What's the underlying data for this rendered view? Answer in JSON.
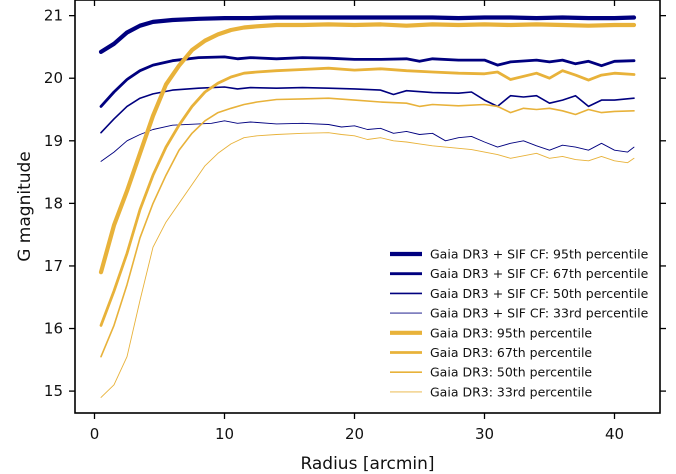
{
  "chart_data": {
    "type": "line",
    "xlabel": "Radius [arcmin]",
    "ylabel": "G magnitude",
    "xlim": [
      -1.5,
      43.5
    ],
    "ylim": [
      14.65,
      21.25
    ],
    "x_ticks": [
      0,
      10,
      20,
      30,
      40
    ],
    "y_ticks": [
      15,
      16,
      17,
      18,
      19,
      20,
      21
    ],
    "legend_position": "lower right",
    "grid": false,
    "series": [
      {
        "name": "Gaia DR3 + SIF CF: 95th percentile",
        "color": "#00007f",
        "width": 4.2,
        "x": [
          0.5,
          1.5,
          2.5,
          3.5,
          4.5,
          6,
          8,
          10,
          12,
          14,
          16,
          18,
          20,
          22,
          24,
          26,
          28,
          30,
          32,
          34,
          36,
          38,
          40,
          41.5
        ],
        "y": [
          20.42,
          20.55,
          20.73,
          20.84,
          20.9,
          20.93,
          20.95,
          20.96,
          20.96,
          20.97,
          20.97,
          20.97,
          20.97,
          20.97,
          20.97,
          20.97,
          20.96,
          20.97,
          20.97,
          20.96,
          20.97,
          20.96,
          20.96,
          20.97
        ]
      },
      {
        "name": "Gaia DR3 + SIF CF: 67th percentile",
        "color": "#00007f",
        "width": 2.8,
        "x": [
          0.5,
          1.5,
          2.5,
          3.5,
          4.5,
          6,
          8,
          10,
          11,
          12,
          14,
          16,
          18,
          20,
          22,
          24,
          25,
          26,
          28,
          30,
          31,
          32,
          34,
          35,
          36,
          37,
          38,
          39,
          40,
          41.5
        ],
        "y": [
          19.55,
          19.78,
          19.98,
          20.12,
          20.21,
          20.28,
          20.33,
          20.34,
          20.31,
          20.33,
          20.31,
          20.33,
          20.32,
          20.3,
          20.3,
          20.31,
          20.27,
          20.31,
          20.29,
          20.29,
          20.21,
          20.26,
          20.29,
          20.26,
          20.29,
          20.23,
          20.27,
          20.2,
          20.27,
          20.28
        ]
      },
      {
        "name": "Gaia DR3 + SIF CF: 50th percentile",
        "color": "#00007f",
        "width": 1.6,
        "x": [
          0.5,
          1.5,
          2.5,
          3.5,
          4.5,
          6,
          8,
          10,
          11,
          12,
          14,
          16,
          18,
          20,
          22,
          23,
          24,
          26,
          28,
          29,
          30,
          31,
          32,
          33,
          34,
          35,
          36,
          37,
          38,
          39,
          40,
          41.5
        ],
        "y": [
          19.13,
          19.35,
          19.55,
          19.68,
          19.75,
          19.81,
          19.84,
          19.86,
          19.83,
          19.85,
          19.84,
          19.85,
          19.84,
          19.83,
          19.81,
          19.74,
          19.8,
          19.77,
          19.76,
          19.78,
          19.65,
          19.55,
          19.72,
          19.7,
          19.72,
          19.6,
          19.65,
          19.72,
          19.55,
          19.65,
          19.65,
          19.68
        ]
      },
      {
        "name": "Gaia DR3 + SIF CF: 33rd percentile",
        "color": "#00007f",
        "width": 0.9,
        "x": [
          0.5,
          1.5,
          2.5,
          3.5,
          4.5,
          6,
          8,
          9,
          10,
          11,
          12,
          14,
          16,
          18,
          19,
          20,
          21,
          22,
          23,
          24,
          25,
          26,
          27,
          28,
          29,
          30,
          31,
          32,
          33,
          34,
          35,
          36,
          37,
          38,
          39,
          40,
          41,
          41.5
        ],
        "y": [
          18.67,
          18.82,
          19.0,
          19.1,
          19.18,
          19.25,
          19.27,
          19.28,
          19.32,
          19.28,
          19.3,
          19.27,
          19.28,
          19.26,
          19.22,
          19.24,
          19.18,
          19.2,
          19.12,
          19.15,
          19.1,
          19.12,
          19.0,
          19.05,
          19.07,
          18.98,
          18.9,
          18.96,
          19.0,
          18.92,
          18.85,
          18.93,
          18.9,
          18.85,
          18.96,
          18.85,
          18.82,
          18.9
        ]
      },
      {
        "name": "Gaia DR3: 95th percentile",
        "color": "#e8b23a",
        "width": 4.2,
        "x": [
          0.5,
          1.5,
          2.5,
          3.5,
          4.5,
          5.5,
          6.5,
          7.5,
          8.5,
          9.5,
          10.5,
          11.5,
          12.5,
          14,
          16,
          18,
          20,
          22,
          24,
          26,
          28,
          30,
          32,
          34,
          36,
          38,
          40,
          41.5
        ],
        "y": [
          16.9,
          17.65,
          18.2,
          18.8,
          19.4,
          19.9,
          20.2,
          20.45,
          20.6,
          20.7,
          20.77,
          20.81,
          20.83,
          20.85,
          20.85,
          20.86,
          20.85,
          20.86,
          20.84,
          20.86,
          20.85,
          20.86,
          20.85,
          20.86,
          20.85,
          20.84,
          20.85,
          20.85
        ]
      },
      {
        "name": "Gaia DR3: 67th percentile",
        "color": "#e8b23a",
        "width": 2.8,
        "x": [
          0.5,
          1.5,
          2.5,
          3.5,
          4.5,
          5.5,
          6.5,
          7.5,
          8.5,
          9.5,
          10.5,
          11.5,
          12.5,
          14,
          16,
          18,
          20,
          22,
          24,
          26,
          28,
          30,
          31,
          32,
          34,
          35,
          36,
          37,
          38,
          39,
          40,
          41.5
        ],
        "y": [
          16.05,
          16.6,
          17.2,
          17.9,
          18.45,
          18.9,
          19.25,
          19.55,
          19.78,
          19.92,
          20.02,
          20.08,
          20.1,
          20.12,
          20.14,
          20.16,
          20.13,
          20.15,
          20.12,
          20.1,
          20.08,
          20.07,
          20.1,
          19.98,
          20.08,
          20.0,
          20.12,
          20.05,
          19.97,
          20.05,
          20.08,
          20.06
        ]
      },
      {
        "name": "Gaia DR3: 50th percentile",
        "color": "#e8b23a",
        "width": 1.6,
        "x": [
          0.5,
          1.5,
          2.5,
          3.5,
          4.5,
          5.5,
          6.5,
          7.5,
          8.5,
          9.5,
          10.5,
          11.5,
          12.5,
          14,
          16,
          18,
          20,
          22,
          24,
          25,
          26,
          28,
          30,
          31,
          32,
          33,
          34,
          35,
          36,
          37,
          38,
          39,
          40,
          41.5
        ],
        "y": [
          15.55,
          16.05,
          16.7,
          17.45,
          18.0,
          18.45,
          18.85,
          19.12,
          19.32,
          19.45,
          19.52,
          19.58,
          19.62,
          19.66,
          19.67,
          19.68,
          19.65,
          19.62,
          19.6,
          19.55,
          19.58,
          19.56,
          19.58,
          19.55,
          19.45,
          19.52,
          19.5,
          19.52,
          19.48,
          19.42,
          19.5,
          19.45,
          19.47,
          19.48
        ]
      },
      {
        "name": "Gaia DR3: 33rd percentile",
        "color": "#e8b23a",
        "width": 0.9,
        "x": [
          0.5,
          1.5,
          2.5,
          3.5,
          4.5,
          5.5,
          6.5,
          7.5,
          8.5,
          9.5,
          10.5,
          11.5,
          12.5,
          14,
          16,
          18,
          19,
          20,
          21,
          22,
          23,
          24,
          25,
          26,
          27,
          28,
          29,
          30,
          31,
          32,
          33,
          34,
          35,
          36,
          37,
          38,
          39,
          40,
          41,
          41.5
        ],
        "y": [
          14.9,
          15.1,
          15.55,
          16.45,
          17.3,
          17.7,
          18.0,
          18.3,
          18.6,
          18.8,
          18.95,
          19.05,
          19.08,
          19.1,
          19.12,
          19.13,
          19.1,
          19.08,
          19.02,
          19.05,
          19.0,
          18.98,
          18.95,
          18.92,
          18.9,
          18.88,
          18.86,
          18.82,
          18.78,
          18.72,
          18.76,
          18.8,
          18.72,
          18.75,
          18.7,
          18.68,
          18.75,
          18.68,
          18.65,
          18.72
        ]
      }
    ]
  }
}
